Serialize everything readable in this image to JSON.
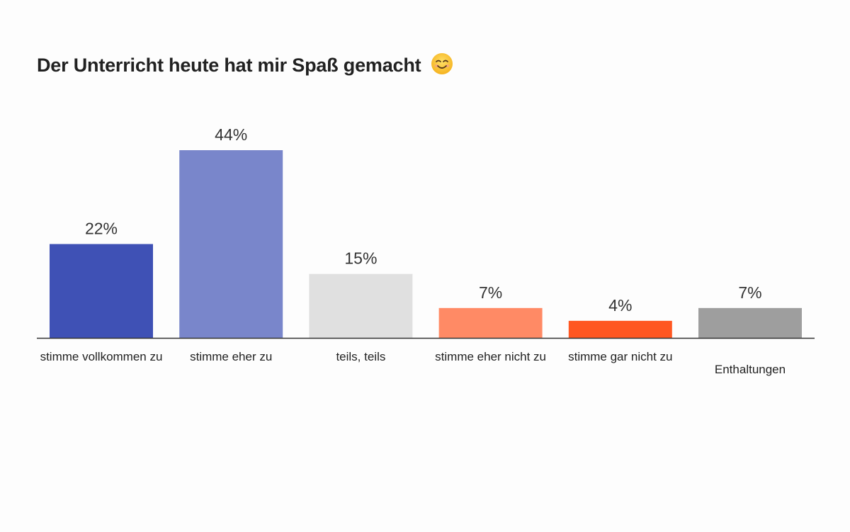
{
  "chart_data": {
    "type": "bar",
    "title": "Der Unterricht heute hat mir Spaß gemacht",
    "title_icon": "smiling-face-emoji-icon",
    "xlabel": "",
    "ylabel": "",
    "ylim": [
      0,
      48
    ],
    "grid": false,
    "legend": "none",
    "unit": "%",
    "categories": [
      "stimme vollkommen zu",
      "stimme eher zu",
      "teils, teils",
      "stimme eher nicht zu",
      "stimme gar nicht zu",
      "Enthaltungen"
    ],
    "values": [
      22,
      44,
      15,
      7,
      4,
      7
    ],
    "value_labels": [
      "22%",
      "44%",
      "15%",
      "7%",
      "4%",
      "7%"
    ],
    "colors": [
      "#3f51b5",
      "#7986cb",
      "#e0e0e0",
      "#ff8a65",
      "#ff5722",
      "#9e9e9e"
    ]
  }
}
